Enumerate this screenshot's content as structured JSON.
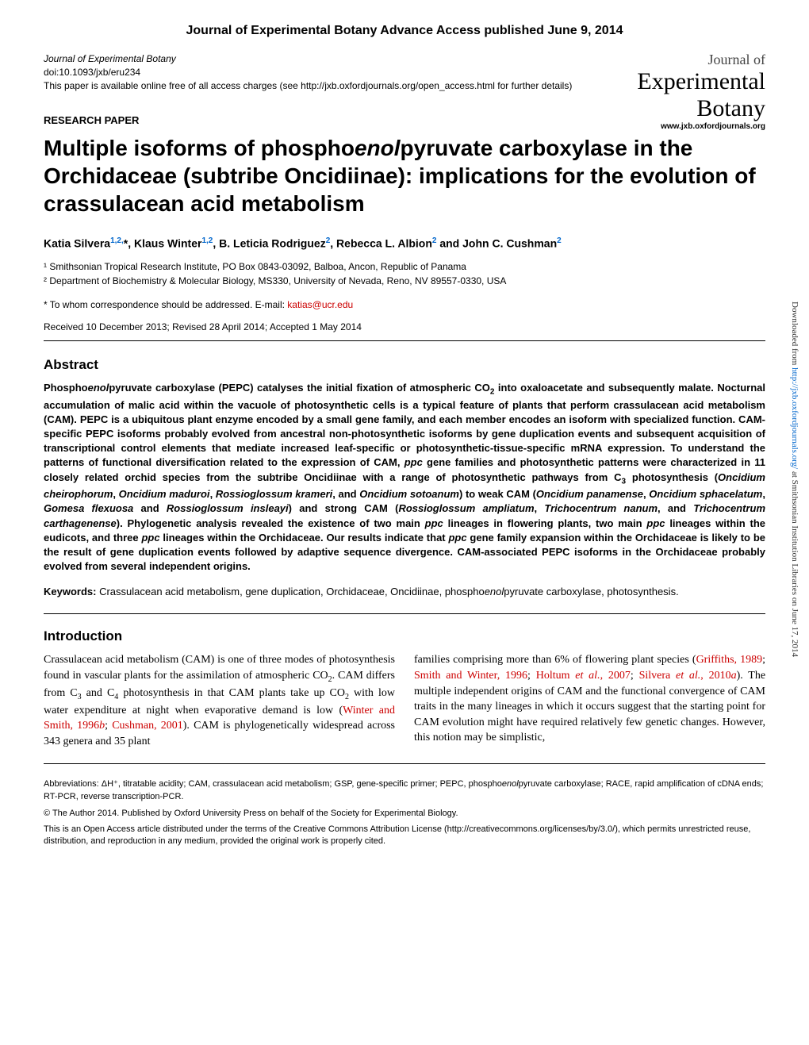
{
  "advance_header": "Journal of Experimental Botany Advance Access published June 9, 2014",
  "journal_info": {
    "name": "Journal of Experimental Botany",
    "doi": "doi:10.1093/jxb/eru234",
    "open_access": "This paper is available online free of all access charges (see http://jxb.oxfordjournals.org/open_access.html for further details)"
  },
  "logo": {
    "line1": "Journal of",
    "line2": "Experimental",
    "line3": "Botany",
    "url": "www.jxb.oxfordjournals.org"
  },
  "research_label": "RESEARCH PAPER",
  "title_parts": {
    "p1": "Multiple isoforms of phospho",
    "p2": "enol",
    "p3": "pyruvate carboxylase in the Orchidaceae (subtribe Oncidiinae): implications for the evolution of crassulacean acid metabolism"
  },
  "authors": {
    "a1_name": "Katia Silvera",
    "a1_sup": "1,2,",
    "a1_star": "*",
    "a2_name": ", Klaus Winter",
    "a2_sup": "1,2",
    "a3_name": ", B. Leticia Rodriguez",
    "a3_sup": "2",
    "a4_name": ", Rebecca L. Albion",
    "a4_sup": "2",
    "a5_name": " and John C. Cushman",
    "a5_sup": "2"
  },
  "affiliations": {
    "aff1": "¹ Smithsonian Tropical Research Institute, PO Box 0843-03092, Balboa, Ancon, Republic of Panama",
    "aff2": "² Department of Biochemistry & Molecular Biology, MS330, University of Nevada, Reno, NV 89557-0330, USA"
  },
  "correspondence": {
    "text": "* To whom correspondence should be addressed. E-mail: ",
    "email": "katias@ucr.edu"
  },
  "received": "Received 10 December 2013; Revised 28 April 2014; Accepted 1 May 2014",
  "abstract_heading": "Abstract",
  "abstract_body": "Phospho<i>enol</i>pyruvate carboxylase (PEPC) catalyses the initial fixation of atmospheric CO<sub>2</sub> into oxaloacetate and subsequently malate. Nocturnal accumulation of malic acid within the vacuole of photosynthetic cells is a typical feature of plants that perform crassulacean acid metabolism (CAM). PEPC is a ubiquitous plant enzyme encoded by a small gene family, and each member encodes an isoform with specialized function. CAM-specific PEPC isoforms probably evolved from ancestral non-photosynthetic isoforms by gene duplication events and subsequent acquisition of transcriptional control elements that mediate increased leaf-specific or photosynthetic-tissue-specific mRNA expression. To understand the patterns of functional diversification related to the expression of CAM, <i>ppc</i> gene families and photosynthetic patterns were characterized in 11 closely related orchid species from the subtribe Oncidiinae with a range of photosynthetic pathways from C<sub>3</sub> photosynthesis (<i>Oncidium cheirophorum</i>, <i>Oncidium maduroi</i>, <i>Rossioglossum krameri</i>, and <i>Oncidium sotoanum</i>) to weak CAM (<i>Oncidium panamense</i>, <i>Oncidium sphacelatum</i>, <i>Gomesa flexuosa</i> and <i>Rossioglossum insleayi</i>) and strong CAM (<i>Rossioglossum ampliatum</i>, <i>Trichocentrum nanum</i>, and <i>Trichocentrum carthagenense</i>). Phylogenetic analysis revealed the existence of two main <i>ppc</i> lineages in flowering plants, two main <i>ppc</i> lineages within the eudicots, and three <i>ppc</i> lineages within the Orchidaceae. Our results indicate that <i>ppc</i> gene family expansion within the Orchidaceae is likely to be the result of gene duplication events followed by adaptive sequence divergence. CAM-associated PEPC isoforms in the Orchidaceae probably evolved from several independent origins.",
  "keywords": {
    "label": "Keywords:",
    "text": "   Crassulacean acid metabolism, gene duplication, Orchidaceae, Oncidiinae, phospho<i>enol</i>pyruvate carboxylase, photosynthesis."
  },
  "intro_heading": "Introduction",
  "intro_col1": "Crassulacean acid metabolism (CAM) is one of three modes of photosynthesis found in vascular plants for the assimilation of atmospheric CO<sub>2</sub>. CAM differs from C<sub>3</sub> and C<sub>4</sub> photosynthesis in that CAM plants take up CO<sub>2</sub> with low water expenditure at night when evaporative demand is low (<a href='#'>Winter and Smith, 1996<i>b</i></a>; <a href='#'>Cushman, 2001</a>). CAM is phylogenetically widespread across 343 genera and 35 plant",
  "intro_col2": "families comprising more than 6% of flowering plant species (<a href='#'>Griffiths, 1989</a>; <a href='#'>Smith and Winter, 1996</a>; <a href='#'>Holtum <i>et al.</i>, 2007</a>; <a href='#'>Silvera <i>et al.</i>, 2010<i>a</i></a>). The multiple independent origins of CAM and the functional convergence of CAM traits in the many lineages in which it occurs suggest that the starting point for CAM evolution might have required relatively few genetic changes. However, this notion may be simplistic,",
  "footer": {
    "abbrev": "Abbreviations: ΔH⁺, titratable acidity; CAM, crassulacean acid metabolism; GSP, gene-specific primer; PEPC, phospho<i>enol</i>pyruvate carboxylase; RACE, rapid amplification of cDNA ends; RT-PCR, reverse transcription-PCR.",
    "copyright": "© The Author 2014. Published by Oxford University Press on behalf of the Society for Experimental Biology.",
    "license": "This is an Open Access article distributed under the terms of the Creative Commons Attribution License (http://creativecommons.org/licenses/by/3.0/), which permits unrestricted reuse, distribution, and reproduction in any medium, provided the original work is properly cited."
  },
  "sidebar": {
    "prefix": "Downloaded from ",
    "link": "http://jxb.oxfordjournals.org/",
    "suffix": " at Smithsonian Institution Libraries on June 17, 2014"
  }
}
